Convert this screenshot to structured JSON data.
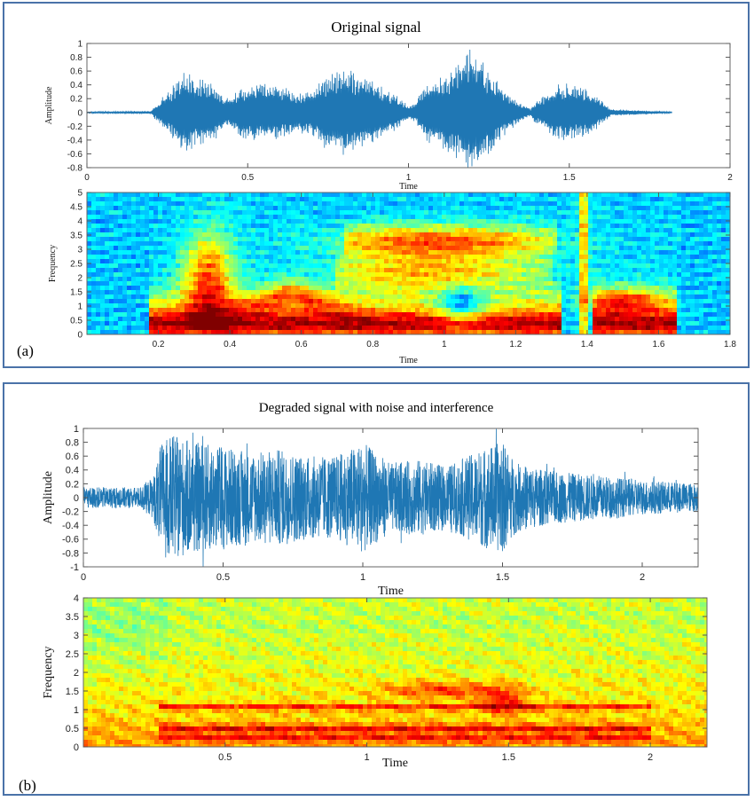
{
  "panels": {
    "a": {
      "label": "(a)",
      "title": "Original signal"
    },
    "b": {
      "label": "(b)",
      "title": "Degraded signal with noise and interference"
    }
  },
  "colors": {
    "waveform": "#1f77b4",
    "panel_border": "#4a72a8",
    "colormap": "jet"
  },
  "chart_data": [
    {
      "id": "a-wave",
      "type": "line",
      "title": "Original signal",
      "xlabel": "Time",
      "ylabel": "Amplitude",
      "xlim": [
        0,
        2
      ],
      "ylim": [
        -0.8,
        1
      ],
      "xticks": [
        "0",
        "0.5",
        "1",
        "1.5",
        "2"
      ],
      "yticks": [
        "1",
        "0.8",
        "0.6",
        "0.4",
        "0.2",
        "0",
        "-0.2",
        "-0.4",
        "-0.6",
        "-0.8"
      ],
      "signal_end": 1.82,
      "envelope": [
        [
          0,
          0.01
        ],
        [
          0.2,
          0.02
        ],
        [
          0.21,
          0.1
        ],
        [
          0.25,
          0.3
        ],
        [
          0.3,
          0.6
        ],
        [
          0.35,
          0.5
        ],
        [
          0.4,
          0.4
        ],
        [
          0.44,
          0.2
        ],
        [
          0.47,
          0.35
        ],
        [
          0.5,
          0.4
        ],
        [
          0.55,
          0.45
        ],
        [
          0.6,
          0.4
        ],
        [
          0.65,
          0.3
        ],
        [
          0.7,
          0.35
        ],
        [
          0.75,
          0.6
        ],
        [
          0.79,
          0.65
        ],
        [
          0.85,
          0.6
        ],
        [
          0.9,
          0.45
        ],
        [
          0.95,
          0.3
        ],
        [
          1.0,
          0.1
        ],
        [
          1.02,
          0.15
        ],
        [
          1.05,
          0.4
        ],
        [
          1.1,
          0.55
        ],
        [
          1.15,
          0.7
        ],
        [
          1.18,
          0.95
        ],
        [
          1.22,
          0.85
        ],
        [
          1.27,
          0.5
        ],
        [
          1.33,
          0.2
        ],
        [
          1.38,
          0.05
        ],
        [
          1.39,
          0.15
        ],
        [
          1.41,
          0.2
        ],
        [
          1.45,
          0.4
        ],
        [
          1.5,
          0.45
        ],
        [
          1.55,
          0.35
        ],
        [
          1.6,
          0.2
        ],
        [
          1.63,
          0.05
        ],
        [
          1.82,
          0.01
        ]
      ]
    },
    {
      "id": "a-spec",
      "type": "heatmap",
      "xlabel": "Time",
      "ylabel": "Frequency",
      "xlim": [
        0,
        1.8
      ],
      "ylim": [
        0,
        5
      ],
      "xticks": [
        "0.2",
        "0.4",
        "0.6",
        "0.8",
        "1",
        "1.2",
        "1.4",
        "1.6",
        "1.8"
      ],
      "yticks": [
        "5",
        "4.5",
        "4",
        "3.5",
        "3",
        "2.5",
        "2",
        "1.5",
        "1",
        "0.5",
        "0"
      ],
      "colormap": "jet"
    },
    {
      "id": "b-wave",
      "type": "line",
      "title": "Degraded signal with noise and interference",
      "xlabel": "Time",
      "ylabel": "Amplitude",
      "xlim": [
        0,
        2.2
      ],
      "ylim": [
        -1,
        1
      ],
      "xticks": [
        "0",
        "0.5",
        "1",
        "1.5",
        "2"
      ],
      "yticks": [
        "1",
        "0.8",
        "0.6",
        "0.4",
        "0.2",
        "0",
        "-0.2",
        "-0.4",
        "-0.6",
        "-0.8",
        "-1"
      ],
      "envelope": [
        [
          0,
          0.15
        ],
        [
          0.2,
          0.15
        ],
        [
          0.25,
          0.3
        ],
        [
          0.28,
          0.8
        ],
        [
          0.32,
          0.9
        ],
        [
          0.4,
          0.8
        ],
        [
          0.5,
          0.75
        ],
        [
          0.6,
          0.65
        ],
        [
          0.7,
          0.7
        ],
        [
          0.8,
          0.6
        ],
        [
          0.9,
          0.6
        ],
        [
          1.0,
          0.8
        ],
        [
          1.1,
          0.5
        ],
        [
          1.2,
          0.55
        ],
        [
          1.3,
          0.45
        ],
        [
          1.4,
          0.65
        ],
        [
          1.45,
          0.75
        ],
        [
          1.5,
          0.8
        ],
        [
          1.55,
          0.5
        ],
        [
          1.65,
          0.4
        ],
        [
          1.75,
          0.35
        ],
        [
          1.9,
          0.3
        ],
        [
          2.0,
          0.25
        ],
        [
          2.2,
          0.2
        ]
      ]
    },
    {
      "id": "b-spec",
      "type": "heatmap",
      "xlabel": "Time",
      "ylabel": "Frequency",
      "xlim": [
        0,
        2.2
      ],
      "ylim": [
        0,
        4
      ],
      "xticks": [
        "0.5",
        "1",
        "1.5",
        "2"
      ],
      "yticks": [
        "4",
        "3.5",
        "3",
        "2.5",
        "2",
        "1.5",
        "1",
        "0.5",
        "0"
      ],
      "colormap": "jet"
    }
  ]
}
